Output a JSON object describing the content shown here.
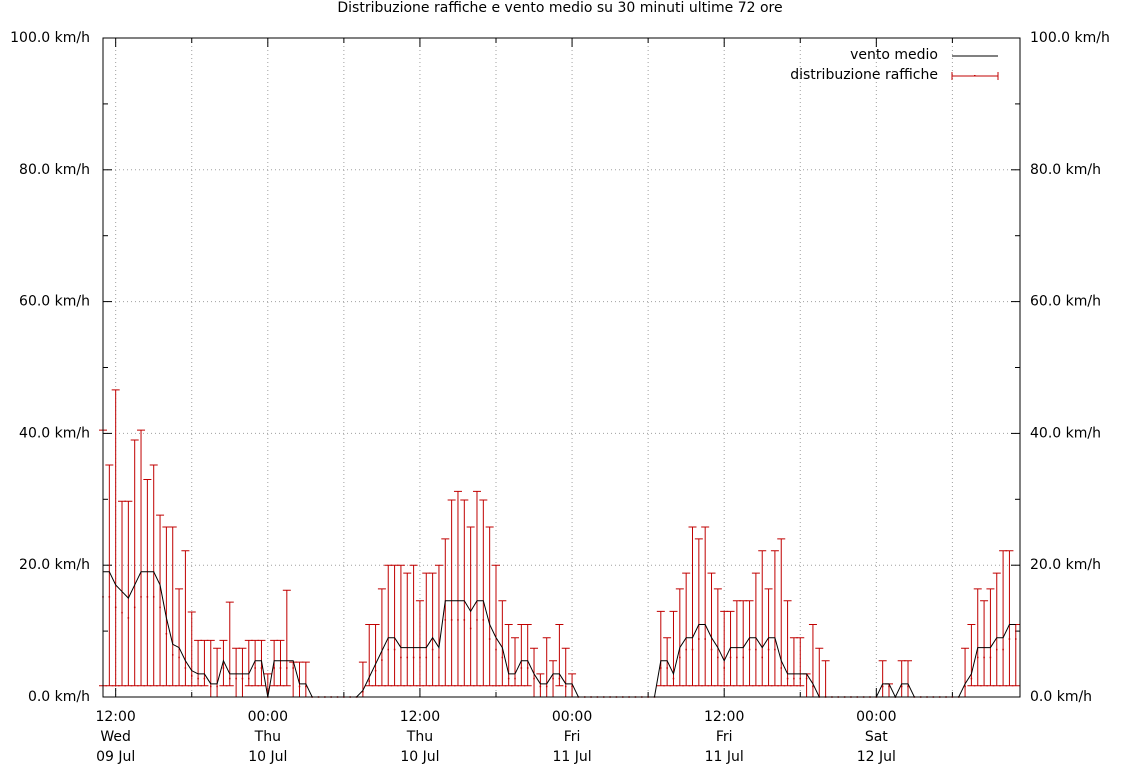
{
  "chart_data": {
    "type": "line-errorbar",
    "title": "Distribuzione raffiche e vento medio su 30 minuti ultime 72 ore",
    "x": [
      "09 Jul 11:00",
      "09 Jul 11:30",
      "09 Jul 12:00",
      "09 Jul 12:30",
      "09 Jul 13:00",
      "09 Jul 13:30",
      "09 Jul 14:00",
      "09 Jul 14:30",
      "09 Jul 15:00",
      "09 Jul 15:30",
      "09 Jul 16:00",
      "09 Jul 16:30",
      "09 Jul 17:00",
      "09 Jul 17:30",
      "09 Jul 18:00",
      "09 Jul 18:30",
      "09 Jul 19:00",
      "09 Jul 19:30",
      "09 Jul 20:00",
      "09 Jul 20:30",
      "09 Jul 21:00",
      "09 Jul 21:30",
      "09 Jul 22:00",
      "09 Jul 22:30",
      "09 Jul 23:00",
      "09 Jul 23:30",
      "10 Jul 00:00",
      "10 Jul 00:30",
      "10 Jul 01:00",
      "10 Jul 01:30",
      "10 Jul 02:00",
      "10 Jul 02:30",
      "10 Jul 03:00",
      "10 Jul 03:30",
      "10 Jul 04:00",
      "10 Jul 04:30",
      "10 Jul 05:00",
      "10 Jul 05:30",
      "10 Jul 06:00",
      "10 Jul 06:30",
      "10 Jul 07:00",
      "10 Jul 07:30",
      "10 Jul 08:00",
      "10 Jul 08:30",
      "10 Jul 09:00",
      "10 Jul 09:30",
      "10 Jul 10:00",
      "10 Jul 10:30",
      "10 Jul 11:00",
      "10 Jul 11:30",
      "10 Jul 12:00",
      "10 Jul 12:30",
      "10 Jul 13:00",
      "10 Jul 13:30",
      "10 Jul 14:00",
      "10 Jul 14:30",
      "10 Jul 15:00",
      "10 Jul 15:30",
      "10 Jul 16:00",
      "10 Jul 16:30",
      "10 Jul 17:00",
      "10 Jul 17:30",
      "10 Jul 18:00",
      "10 Jul 18:30",
      "10 Jul 19:00",
      "10 Jul 19:30",
      "10 Jul 20:00",
      "10 Jul 20:30",
      "10 Jul 21:00",
      "10 Jul 21:30",
      "10 Jul 22:00",
      "10 Jul 22:30",
      "10 Jul 23:00",
      "10 Jul 23:30",
      "11 Jul 00:00",
      "11 Jul 00:30",
      "11 Jul 01:00",
      "11 Jul 01:30",
      "11 Jul 02:00",
      "11 Jul 02:30",
      "11 Jul 03:00",
      "11 Jul 03:30",
      "11 Jul 04:00",
      "11 Jul 04:30",
      "11 Jul 05:00",
      "11 Jul 05:30",
      "11 Jul 06:00",
      "11 Jul 06:30",
      "11 Jul 07:00",
      "11 Jul 07:30",
      "11 Jul 08:00",
      "11 Jul 08:30",
      "11 Jul 09:00",
      "11 Jul 09:30",
      "11 Jul 10:00",
      "11 Jul 10:30",
      "11 Jul 11:00",
      "11 Jul 11:30",
      "11 Jul 12:00",
      "11 Jul 12:30",
      "11 Jul 13:00",
      "11 Jul 13:30",
      "11 Jul 14:00",
      "11 Jul 14:30",
      "11 Jul 15:00",
      "11 Jul 15:30",
      "11 Jul 16:00",
      "11 Jul 16:30",
      "11 Jul 17:00",
      "11 Jul 17:30",
      "11 Jul 18:00",
      "11 Jul 18:30",
      "11 Jul 19:00",
      "11 Jul 19:30",
      "11 Jul 20:00",
      "11 Jul 20:30",
      "11 Jul 21:00",
      "11 Jul 21:30",
      "11 Jul 22:00",
      "11 Jul 22:30",
      "11 Jul 23:00",
      "11 Jul 23:30",
      "12 Jul 00:00",
      "12 Jul 00:30",
      "12 Jul 01:00",
      "12 Jul 01:30",
      "12 Jul 02:00",
      "12 Jul 02:30",
      "12 Jul 03:00",
      "12 Jul 03:30",
      "12 Jul 04:00",
      "12 Jul 04:30",
      "12 Jul 05:00",
      "12 Jul 05:30",
      "12 Jul 06:00",
      "12 Jul 06:30",
      "12 Jul 07:00",
      "12 Jul 07:30",
      "12 Jul 08:00",
      "12 Jul 08:30",
      "12 Jul 09:00",
      "12 Jul 09:30",
      "12 Jul 10:00",
      "12 Jul 10:30",
      "12 Jul 11:00"
    ],
    "series": [
      {
        "name": "vento medio",
        "color": "#000000",
        "values": [
          19,
          19,
          17,
          16,
          15,
          17,
          19,
          19,
          19,
          17,
          12,
          8,
          7.5,
          5.5,
          4,
          3.5,
          3.5,
          2,
          2,
          5.5,
          3.5,
          3.5,
          3.5,
          3.5,
          5.5,
          5.5,
          0,
          5.5,
          5.5,
          5.5,
          5.5,
          2,
          2,
          0,
          0,
          0,
          0,
          0,
          0,
          0,
          0,
          1,
          3,
          5,
          7,
          9,
          9,
          7.5,
          7.5,
          7.5,
          7.5,
          7.5,
          9,
          7.5,
          14.6,
          14.6,
          14.6,
          14.6,
          13,
          14.6,
          14.6,
          11,
          9,
          7.5,
          3.5,
          3.5,
          5.5,
          5.5,
          3.5,
          2,
          2,
          3.5,
          3.5,
          2,
          2,
          0,
          0,
          0,
          0,
          0,
          0,
          0,
          0,
          0,
          0,
          0,
          0,
          0,
          5.5,
          5.5,
          3.5,
          7.5,
          9,
          9,
          11,
          11,
          9,
          7.5,
          5.5,
          7.5,
          7.5,
          7.5,
          9,
          9,
          7.5,
          9,
          9,
          5.5,
          3.5,
          3.5,
          3.5,
          3.5,
          2,
          0,
          0,
          0,
          0,
          0,
          0,
          0,
          0,
          0,
          0,
          2,
          2,
          0,
          2,
          2,
          0,
          0,
          0,
          0,
          0,
          0,
          0,
          0,
          2,
          3.5,
          7.5,
          7.5,
          7.5,
          9,
          9,
          11,
          11
        ]
      },
      {
        "name": "distribuzione raffiche",
        "color": "#c00000",
        "values": [
          15.2,
          15.2,
          13.6,
          12.8,
          12,
          13.6,
          15.2,
          15.2,
          15.2,
          13.6,
          9.6,
          6.4,
          6,
          4.4,
          3.2,
          2.8,
          2.8,
          1.6,
          1.6,
          4.4,
          2.8,
          2.8,
          2.8,
          2.8,
          4.4,
          4.4,
          0,
          4.4,
          4.4,
          4.4,
          4.4,
          1.6,
          1.6,
          0,
          0,
          0,
          0,
          0,
          0,
          0,
          0,
          0.8,
          2.4,
          4,
          5.6,
          7.2,
          7.2,
          6,
          6,
          6,
          6,
          6,
          7.2,
          6,
          11.7,
          11.7,
          11.7,
          11.7,
          10.4,
          11.7,
          11.7,
          8.8,
          7.2,
          6,
          2.8,
          2.8,
          4.4,
          4.4,
          2.8,
          1.6,
          1.6,
          2.8,
          2.8,
          1.6,
          1.6,
          0,
          0,
          0,
          0,
          0,
          0,
          0,
          0,
          0,
          0,
          0,
          0,
          0,
          4.4,
          4.4,
          2.8,
          6,
          7.2,
          7.2,
          8.8,
          8.8,
          7.2,
          6,
          4.4,
          6,
          6,
          6,
          7.2,
          7.2,
          6,
          7.2,
          7.2,
          4.4,
          2.8,
          2.8,
          2.8,
          2.8,
          1.6,
          0,
          0,
          0,
          0,
          0,
          0,
          0,
          0,
          0,
          0,
          1.6,
          1.6,
          0,
          1.6,
          1.6,
          0,
          0,
          0,
          0,
          0,
          0,
          0,
          0,
          1.6,
          2.8,
          6,
          6,
          6,
          7.2,
          7.2,
          8.8,
          8.8
        ],
        "low": [
          1.7,
          1.7,
          1.7,
          1.7,
          1.7,
          1.7,
          1.7,
          1.7,
          1.7,
          1.7,
          1.7,
          1.7,
          1.7,
          1.7,
          1.7,
          1.7,
          1.7,
          0,
          0,
          1.7,
          1.7,
          0,
          0,
          1.7,
          1.7,
          1.7,
          0,
          1.7,
          1.7,
          1.7,
          0,
          0,
          0,
          0,
          0,
          0,
          0,
          0,
          0,
          0,
          0,
          0,
          1.7,
          1.7,
          1.7,
          1.7,
          1.7,
          1.7,
          1.7,
          1.7,
          1.7,
          1.7,
          1.7,
          1.7,
          1.7,
          1.7,
          1.7,
          1.7,
          1.7,
          1.7,
          1.7,
          1.7,
          1.7,
          1.7,
          1.7,
          1.7,
          1.7,
          1.7,
          0,
          0,
          0,
          0,
          1.7,
          0,
          0,
          0,
          0,
          0,
          0,
          0,
          0,
          0,
          0,
          0,
          0,
          0,
          0,
          0,
          1.7,
          1.7,
          1.7,
          1.7,
          1.7,
          1.7,
          1.7,
          1.7,
          1.7,
          1.7,
          1.7,
          1.7,
          1.7,
          1.7,
          1.7,
          1.7,
          1.7,
          1.7,
          1.7,
          1.7,
          1.7,
          1.7,
          1.7,
          0,
          0,
          0,
          0,
          0,
          0,
          0,
          0,
          0,
          0,
          0,
          0,
          0,
          0,
          0,
          0,
          0,
          0,
          0,
          0,
          0,
          0,
          0,
          0,
          0,
          0,
          1.7,
          1.7,
          1.7,
          1.7,
          1.7,
          1.7,
          1.7,
          1.7
        ],
        "high": [
          40.5,
          35.2,
          46.6,
          29.7,
          29.7,
          39,
          40.5,
          33,
          35.2,
          27.6,
          25.8,
          25.8,
          16.4,
          22.2,
          12.9,
          8.6,
          8.6,
          8.6,
          7.4,
          8.6,
          14.4,
          7.4,
          7.4,
          8.6,
          8.6,
          8.6,
          3.5,
          8.6,
          8.6,
          16.2,
          5.3,
          5.3,
          5.3,
          0,
          0,
          0,
          0,
          0,
          0,
          0,
          0,
          5.3,
          11,
          11,
          16.4,
          20,
          20,
          20,
          18.8,
          20,
          14.6,
          18.8,
          18.8,
          20,
          24,
          29.9,
          31.2,
          29.9,
          25.8,
          31.2,
          29.9,
          25.8,
          20,
          14.6,
          11,
          9,
          11,
          11,
          7.4,
          3.5,
          9,
          5.5,
          11,
          7.4,
          3.5,
          0,
          0,
          0,
          0,
          0,
          0,
          0,
          0,
          0,
          0,
          0,
          0,
          0,
          13,
          9,
          13,
          16.4,
          18.8,
          25.8,
          24,
          25.8,
          18.8,
          16.4,
          13,
          13,
          14.6,
          14.6,
          14.6,
          18.8,
          22.2,
          16.4,
          22.2,
          24,
          14.6,
          9,
          9,
          3.5,
          11,
          7.4,
          5.5,
          0,
          0,
          0,
          0,
          0,
          0,
          0,
          0,
          5.5,
          2,
          0,
          5.5,
          5.5,
          0,
          0,
          0,
          0,
          0,
          0,
          0,
          0,
          7.4,
          11,
          16.4,
          14.6,
          16.4,
          18.8,
          22.2,
          22.2,
          11
        ]
      }
    ],
    "xlim": [
      "09 Jul 11:00",
      "12 Jul 11:20"
    ],
    "xticks": [
      {
        "value": "09 Jul 12:00",
        "label": "12:00\nWed\n09 Jul"
      },
      {
        "value": "10 Jul 00:00",
        "label": "00:00\nThu\n10 Jul"
      },
      {
        "value": "10 Jul 12:00",
        "label": "12:00\nThu\n10 Jul"
      },
      {
        "value": "11 Jul 00:00",
        "label": "00:00\nFri\n11 Jul"
      },
      {
        "value": "11 Jul 12:00",
        "label": "12:00\nFri\n11 Jul"
      },
      {
        "value": "12 Jul 00:00",
        "label": "00:00\nSat\n12 Jul"
      }
    ],
    "xminorticks": [
      "09 Jul 18:00",
      "10 Jul 06:00",
      "10 Jul 18:00",
      "11 Jul 06:00",
      "11 Jul 18:00",
      "12 Jul 06:00"
    ],
    "ylim": [
      0,
      100
    ],
    "yticks": [
      {
        "value": 0,
        "label": "0.0 km/h"
      },
      {
        "value": 20,
        "label": "20.0 km/h"
      },
      {
        "value": 40,
        "label": "40.0 km/h"
      },
      {
        "value": 60,
        "label": "60.0 km/h"
      },
      {
        "value": 80,
        "label": "80.0 km/h"
      },
      {
        "value": 100,
        "label": "100.0 km/h"
      }
    ],
    "yminorticks": [
      10,
      30,
      50,
      70,
      90
    ],
    "y2lim": [
      0,
      100
    ],
    "y2ticks": [
      {
        "value": 0,
        "label": "0.0 km/h"
      },
      {
        "value": 20,
        "label": "20.0 km/h"
      },
      {
        "value": 40,
        "label": "40.0 km/h"
      },
      {
        "value": 60,
        "label": "60.0 km/h"
      },
      {
        "value": 80,
        "label": "80.0 km/h"
      },
      {
        "value": 100,
        "label": "100.0 km/h"
      }
    ],
    "grid": true,
    "legend": "top-right"
  }
}
